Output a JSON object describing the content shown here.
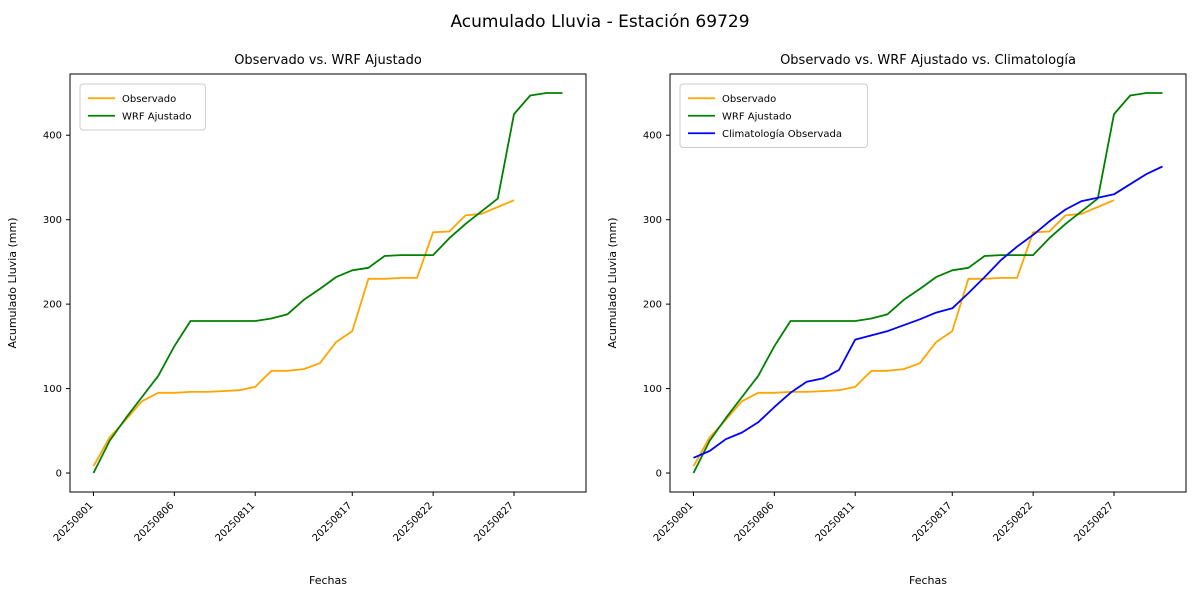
{
  "figure": {
    "suptitle": "Acumulado Lluvia - Estación 69729",
    "background": "#ffffff"
  },
  "chart_data": [
    {
      "type": "line",
      "title": "Observado vs. WRF Ajustado",
      "xlabel": "Fechas",
      "ylabel": "Acumulado Lluvia (mm)",
      "x": [
        "20250801",
        "20250802",
        "20250803",
        "20250804",
        "20250805",
        "20250806",
        "20250807",
        "20250808",
        "20250809",
        "20250810",
        "20250811",
        "20250812",
        "20250813",
        "20250814",
        "20250815",
        "20250816",
        "20250817",
        "20250818",
        "20250819",
        "20250820",
        "20250821",
        "20250822",
        "20250823",
        "20250824",
        "20250825",
        "20250826",
        "20250827",
        "20250828",
        "20250829",
        "20250830"
      ],
      "xticks": [
        "20250801",
        "20250806",
        "20250811",
        "20250817",
        "20250822",
        "20250827"
      ],
      "yticks": [
        0,
        100,
        200,
        300,
        400
      ],
      "ylim": [
        -22.5,
        472.5
      ],
      "grid": false,
      "legend_position": "upper left",
      "series": [
        {
          "name": "Observado",
          "color": "#ffa500",
          "values": [
            8,
            42,
            63,
            85,
            95,
            95,
            96,
            96,
            97,
            98,
            102,
            121,
            121,
            123,
            130,
            155,
            168,
            230,
            230,
            231,
            231,
            285,
            286,
            305,
            307,
            315,
            323,
            null,
            null,
            null
          ]
        },
        {
          "name": "WRF Ajustado",
          "color": "#008000",
          "values": [
            0,
            38,
            65,
            90,
            115,
            150,
            180,
            180,
            180,
            180,
            180,
            183,
            188,
            205,
            218,
            232,
            240,
            243,
            257,
            258,
            258,
            258,
            278,
            295,
            310,
            325,
            425,
            447,
            450,
            450
          ]
        }
      ]
    },
    {
      "type": "line",
      "title": "Observado vs. WRF Ajustado vs. Climatología",
      "xlabel": "Fechas",
      "ylabel": "Acumulado Lluvia (mm)",
      "x": [
        "20250801",
        "20250802",
        "20250803",
        "20250804",
        "20250805",
        "20250806",
        "20250807",
        "20250808",
        "20250809",
        "20250810",
        "20250811",
        "20250812",
        "20250813",
        "20250814",
        "20250815",
        "20250816",
        "20250817",
        "20250818",
        "20250819",
        "20250820",
        "20250821",
        "20250822",
        "20250823",
        "20250824",
        "20250825",
        "20250826",
        "20250827",
        "20250828",
        "20250829",
        "20250830"
      ],
      "xticks": [
        "20250801",
        "20250806",
        "20250811",
        "20250817",
        "20250822",
        "20250827"
      ],
      "yticks": [
        0,
        100,
        200,
        300,
        400
      ],
      "ylim": [
        -22.5,
        472.5
      ],
      "grid": false,
      "legend_position": "upper left",
      "series": [
        {
          "name": "Observado",
          "color": "#ffa500",
          "values": [
            8,
            42,
            63,
            85,
            95,
            95,
            96,
            96,
            97,
            98,
            102,
            121,
            121,
            123,
            130,
            155,
            168,
            230,
            230,
            231,
            231,
            285,
            286,
            305,
            307,
            315,
            323,
            null,
            null,
            null
          ]
        },
        {
          "name": "WRF Ajustado",
          "color": "#008000",
          "values": [
            0,
            38,
            65,
            90,
            115,
            150,
            180,
            180,
            180,
            180,
            180,
            183,
            188,
            205,
            218,
            232,
            240,
            243,
            257,
            258,
            258,
            258,
            278,
            295,
            310,
            325,
            425,
            447,
            450,
            450
          ]
        },
        {
          "name": "Climatología Observada",
          "color": "#0000ff",
          "values": [
            18,
            26,
            40,
            48,
            60,
            78,
            95,
            108,
            112,
            122,
            158,
            163,
            168,
            175,
            182,
            190,
            195,
            213,
            232,
            252,
            268,
            282,
            298,
            312,
            322,
            326,
            330,
            342,
            354,
            363
          ]
        }
      ]
    }
  ]
}
